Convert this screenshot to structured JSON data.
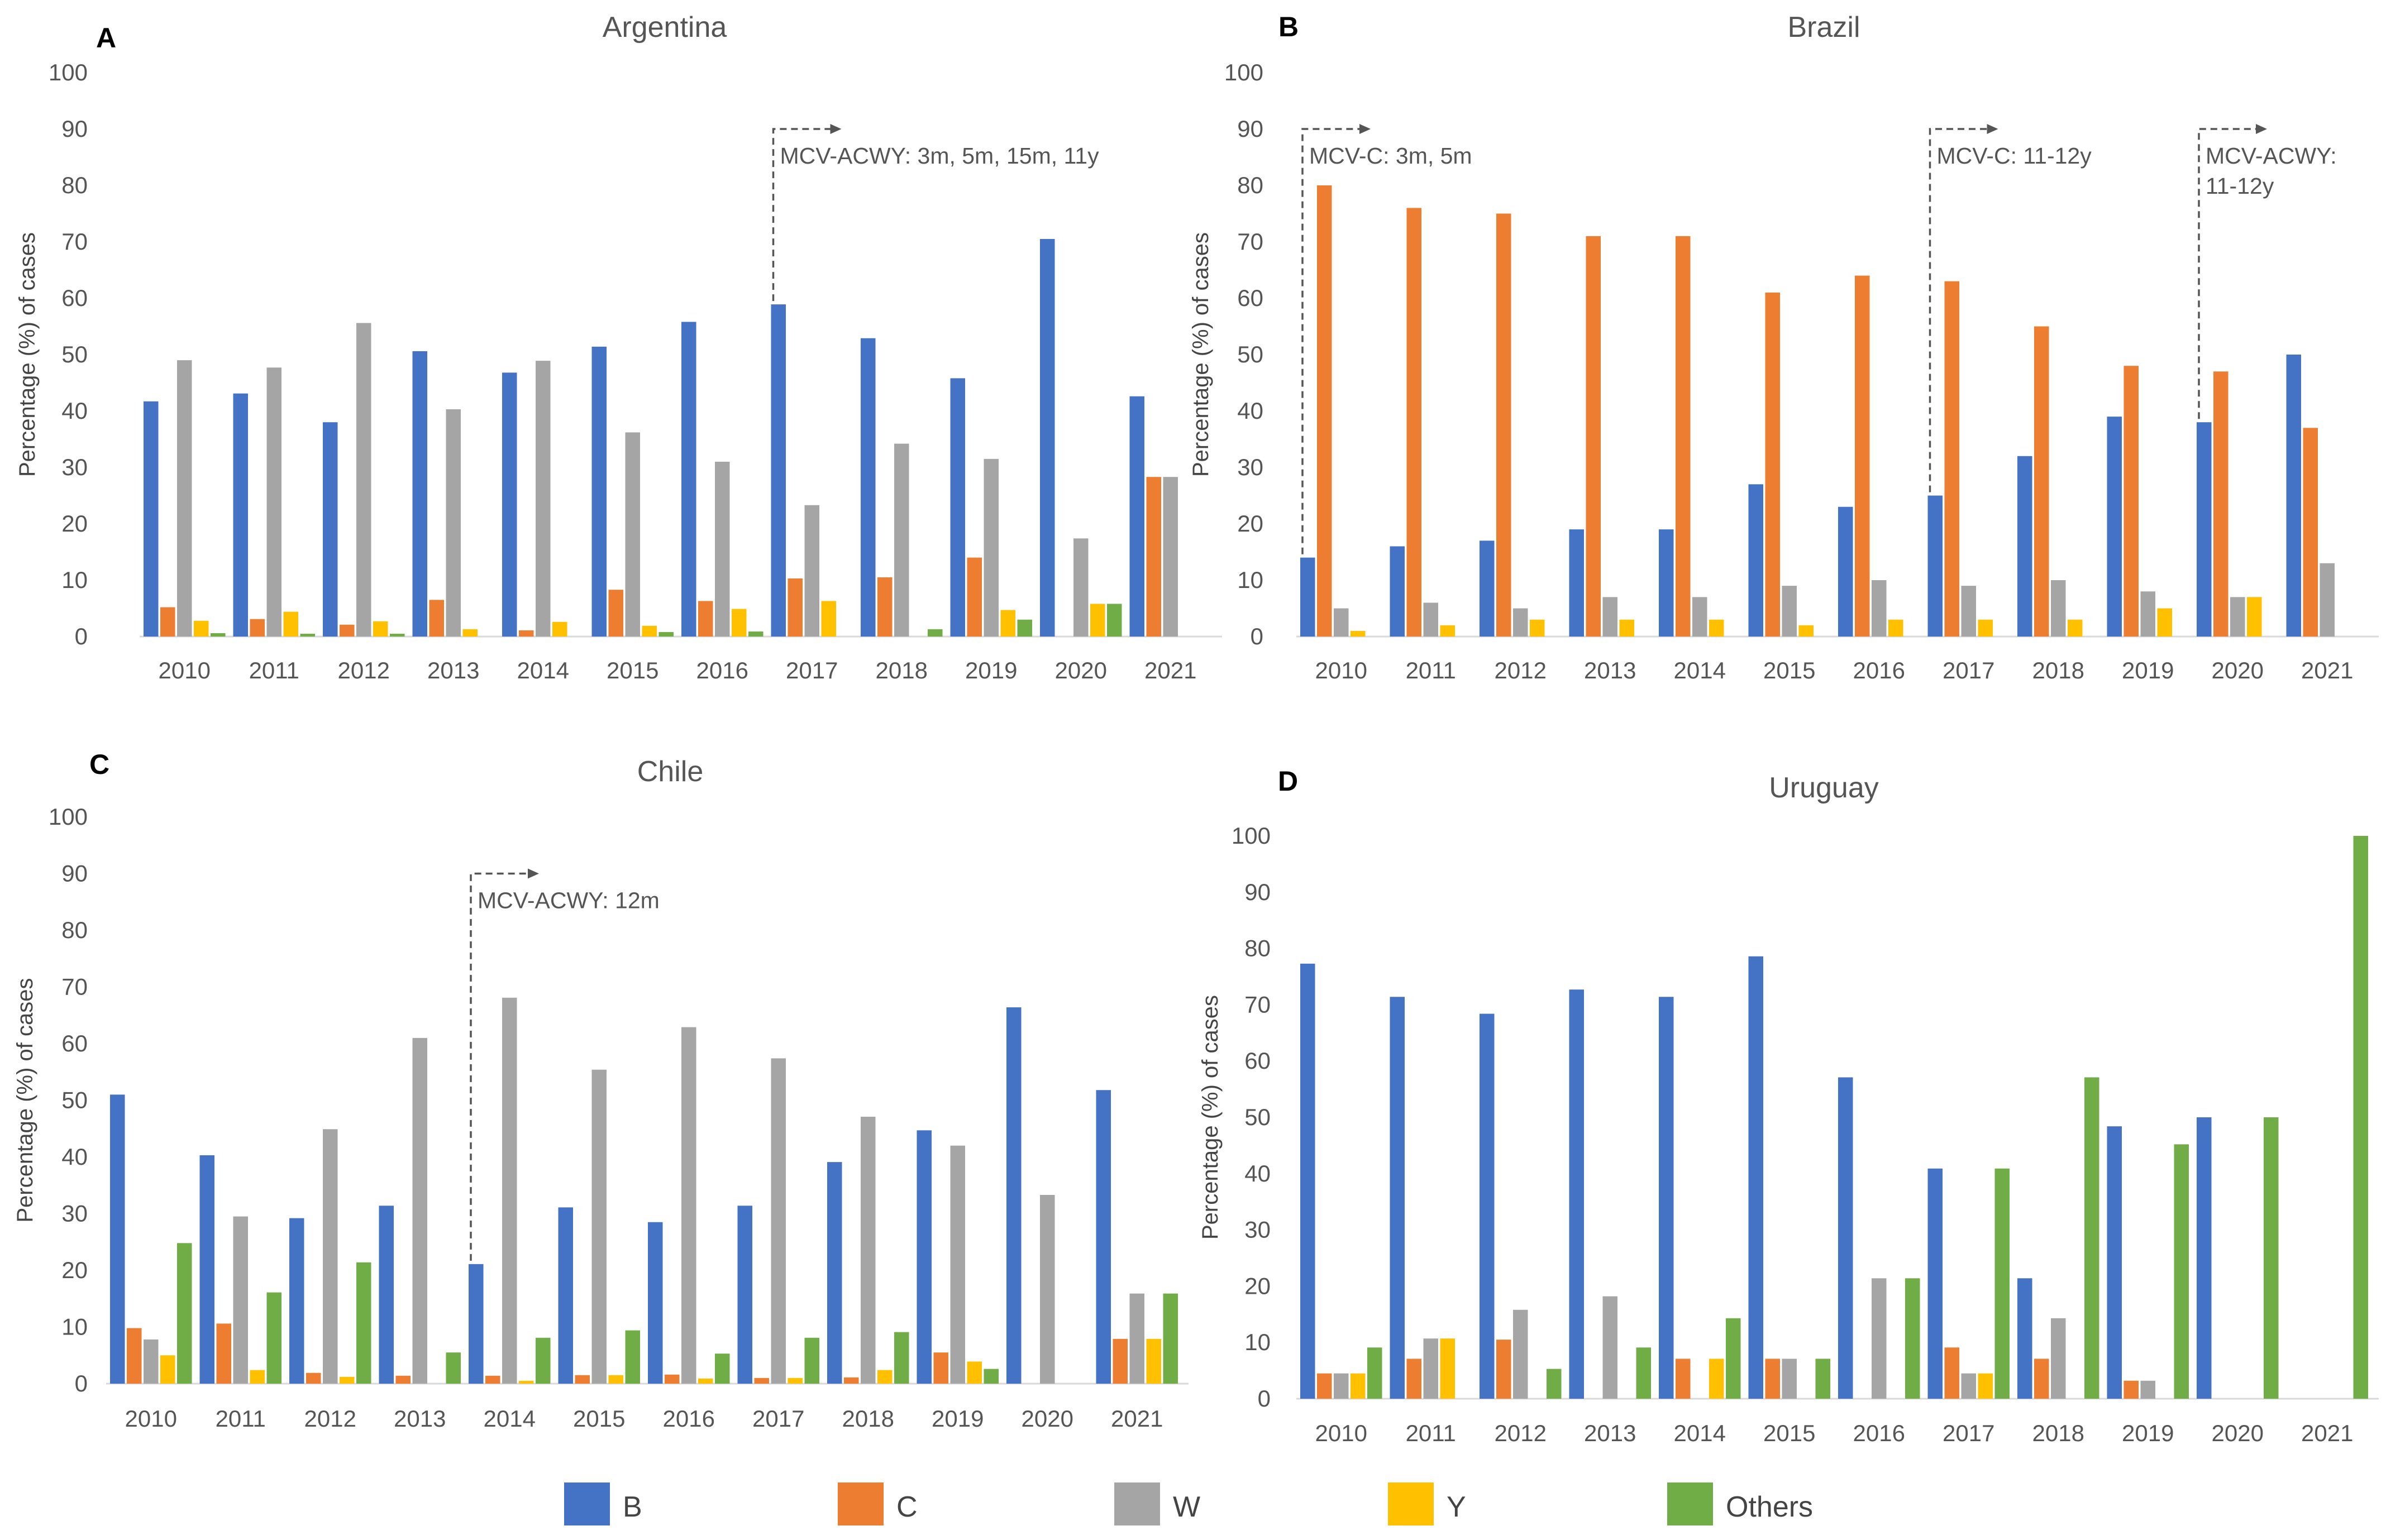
{
  "series_names": [
    "B",
    "C",
    "W",
    "Y",
    "Others"
  ],
  "series_colors": {
    "B": "#4472C4",
    "C": "#ED7D31",
    "W": "#A5A5A5",
    "Y": "#FFC000",
    "Others": "#70AD47"
  },
  "legend": [
    {
      "label": "B"
    },
    {
      "label": "C"
    },
    {
      "label": "W"
    },
    {
      "label": "Y"
    },
    {
      "label": "Others"
    }
  ],
  "chart_data": [
    {
      "type": "bar",
      "panel": "A",
      "title": "Argentina",
      "xlabel": "",
      "ylabel": "Percentage (%) of cases",
      "ylim": [
        0,
        100
      ],
      "ytick_labels": [
        "0",
        "10",
        "20",
        "30",
        "40",
        "50",
        "60",
        "70",
        "80",
        "90",
        "100"
      ],
      "categories": [
        "2010",
        "2011",
        "2012",
        "2013",
        "2014",
        "2015",
        "2016",
        "2017",
        "2018",
        "2019",
        "2020",
        "2021"
      ],
      "series": [
        {
          "name": "B",
          "values": [
            41.7,
            43.1,
            38.0,
            50.6,
            46.8,
            51.4,
            55.8,
            58.9,
            52.9,
            45.8,
            70.5,
            42.6
          ]
        },
        {
          "name": "C",
          "values": [
            5.2,
            3.1,
            2.1,
            6.5,
            1.1,
            8.3,
            6.3,
            10.3,
            10.5,
            14.0,
            0,
            28.3
          ]
        },
        {
          "name": "W",
          "values": [
            49.0,
            47.7,
            55.6,
            40.3,
            48.9,
            36.2,
            31.0,
            23.3,
            34.2,
            31.5,
            17.4,
            28.3
          ]
        },
        {
          "name": "Y",
          "values": [
            2.8,
            4.4,
            2.7,
            1.3,
            2.6,
            1.9,
            4.9,
            6.3,
            0,
            4.7,
            5.8,
            0
          ]
        },
        {
          "name": "Others",
          "values": [
            0.6,
            0.5,
            0.5,
            0,
            0,
            0.8,
            0.9,
            0,
            1.3,
            3.0,
            5.8,
            0
          ]
        }
      ],
      "annotations": [
        {
          "lines": [
            "MCV-ACWY: 3m, 5m, 15m, 11y"
          ],
          "category": "2017"
        }
      ]
    },
    {
      "type": "bar",
      "panel": "B",
      "title": "Brazil",
      "xlabel": "",
      "ylabel": "Percentage (%) of cases",
      "ylim": [
        0,
        100
      ],
      "ytick_labels": [
        "0",
        "10",
        "20",
        "30",
        "40",
        "50",
        "60",
        "70",
        "80",
        "90",
        "100"
      ],
      "categories": [
        "2010",
        "2011",
        "2012",
        "2013",
        "2014",
        "2015",
        "2016",
        "2017",
        "2018",
        "2019",
        "2020",
        "2021"
      ],
      "series": [
        {
          "name": "B",
          "values": [
            14,
            16,
            17,
            19,
            19,
            27,
            23,
            25,
            32,
            39,
            38,
            50
          ]
        },
        {
          "name": "C",
          "values": [
            80,
            76,
            75,
            71,
            71,
            61,
            64,
            63,
            55,
            48,
            47,
            37
          ]
        },
        {
          "name": "W",
          "values": [
            5,
            6,
            5,
            7,
            7,
            9,
            10,
            9,
            10,
            8,
            7,
            13
          ]
        },
        {
          "name": "Y",
          "values": [
            1,
            2,
            3,
            3,
            3,
            2,
            3,
            3,
            3,
            5,
            7,
            0
          ]
        },
        {
          "name": "Others",
          "values": [
            0,
            0,
            0,
            0,
            0,
            0,
            0,
            0,
            0,
            0,
            0,
            0
          ]
        }
      ],
      "annotations": [
        {
          "lines": [
            "MCV-C: 3m, 5m"
          ],
          "category": "2010"
        },
        {
          "lines": [
            "MCV-C: 11-12y"
          ],
          "category": "2017"
        },
        {
          "lines": [
            "MCV-ACWY:",
            "11-12y"
          ],
          "category": "2020"
        }
      ]
    },
    {
      "type": "bar",
      "panel": "C",
      "title": "Chile",
      "xlabel": "",
      "ylabel": "Percentage (%) of cases",
      "ylim": [
        0,
        100
      ],
      "ytick_labels": [
        "0",
        "10",
        "20",
        "30",
        "40",
        "50",
        "60",
        "70",
        "80",
        "90",
        "100"
      ],
      "categories": [
        "2010",
        "2011",
        "2012",
        "2013",
        "2014",
        "2015",
        "2016",
        "2017",
        "2018",
        "2019",
        "2020",
        "2021"
      ],
      "series": [
        {
          "name": "B",
          "values": [
            51.0,
            40.3,
            29.2,
            31.4,
            21.1,
            31.1,
            28.5,
            31.4,
            39.1,
            44.7,
            66.4,
            51.8
          ]
        },
        {
          "name": "C",
          "values": [
            9.8,
            10.6,
            1.9,
            1.4,
            1.4,
            1.5,
            1.6,
            1.0,
            1.1,
            5.5,
            0,
            7.9
          ]
        },
        {
          "name": "W",
          "values": [
            7.8,
            29.5,
            44.9,
            61.0,
            68.1,
            55.4,
            62.9,
            57.4,
            47.1,
            42.0,
            33.3,
            15.9
          ]
        },
        {
          "name": "Y",
          "values": [
            5.0,
            2.4,
            1.2,
            0,
            0.5,
            1.5,
            0.9,
            1.0,
            2.4,
            3.9,
            0,
            7.9
          ]
        },
        {
          "name": "Others",
          "values": [
            24.8,
            16.1,
            21.4,
            5.5,
            8.1,
            9.4,
            5.3,
            8.1,
            9.1,
            2.6,
            0,
            15.9
          ]
        }
      ],
      "annotations": [
        {
          "lines": [
            "MCV-ACWY: 12m"
          ],
          "category": "2014"
        }
      ]
    },
    {
      "type": "bar",
      "panel": "D",
      "title": "Uruguay",
      "xlabel": "",
      "ylabel": "Percentage (%) of cases",
      "ylim": [
        0,
        100
      ],
      "ytick_labels": [
        "0",
        "10",
        "20",
        "30",
        "40",
        "50",
        "60",
        "70",
        "80",
        "90",
        "100"
      ],
      "categories": [
        "2010",
        "2011",
        "2012",
        "2013",
        "2014",
        "2015",
        "2016",
        "2017",
        "2018",
        "2019",
        "2020",
        "2021"
      ],
      "series": [
        {
          "name": "B",
          "values": [
            77.3,
            71.4,
            68.4,
            72.7,
            71.4,
            78.6,
            57.1,
            40.9,
            21.4,
            48.4,
            50.0,
            0
          ]
        },
        {
          "name": "C",
          "values": [
            4.5,
            7.1,
            10.5,
            0,
            7.1,
            7.1,
            0,
            9.1,
            7.1,
            3.2,
            0,
            0
          ]
        },
        {
          "name": "W",
          "values": [
            4.5,
            10.7,
            15.8,
            18.2,
            0,
            7.1,
            21.4,
            4.5,
            14.3,
            3.2,
            0,
            0
          ]
        },
        {
          "name": "Y",
          "values": [
            4.5,
            10.7,
            0,
            0,
            7.1,
            0,
            0,
            4.5,
            0,
            0,
            0,
            0
          ]
        },
        {
          "name": "Others",
          "values": [
            9.1,
            0,
            5.3,
            9.1,
            14.3,
            7.1,
            21.4,
            40.9,
            57.1,
            45.2,
            50.0,
            100
          ]
        }
      ],
      "annotations": []
    }
  ]
}
